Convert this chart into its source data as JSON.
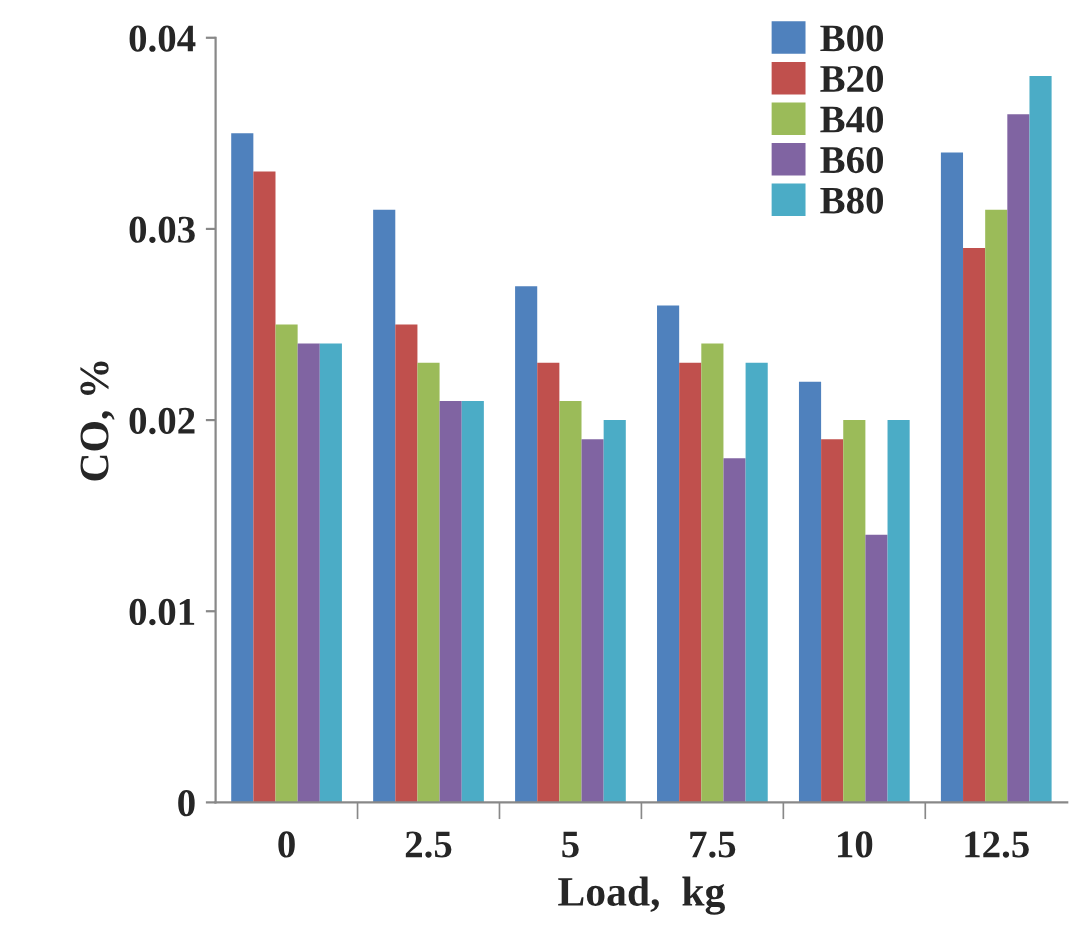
{
  "chart_data": {
    "type": "bar",
    "xlabel": "Load,  kg",
    "ylabel": "CO, %",
    "categories": [
      "0",
      "2.5",
      "5",
      "7.5",
      "10",
      "12.5"
    ],
    "series": [
      {
        "name": "B00",
        "color": "#4f81bd",
        "values": [
          0.035,
          0.031,
          0.027,
          0.026,
          0.022,
          0.034
        ]
      },
      {
        "name": "B20",
        "color": "#c0504d",
        "values": [
          0.033,
          0.025,
          0.023,
          0.023,
          0.019,
          0.029
        ]
      },
      {
        "name": "B40",
        "color": "#9bbb59",
        "values": [
          0.025,
          0.023,
          0.021,
          0.024,
          0.02,
          0.031
        ]
      },
      {
        "name": "B60",
        "color": "#8064a2",
        "values": [
          0.024,
          0.021,
          0.019,
          0.018,
          0.014,
          0.036
        ]
      },
      {
        "name": "B80",
        "color": "#4bacc6",
        "values": [
          0.024,
          0.021,
          0.02,
          0.023,
          0.02,
          0.038
        ]
      }
    ],
    "ylim": [
      0,
      0.04
    ],
    "yticks": [
      0,
      0.01,
      0.02,
      0.03,
      0.04
    ],
    "grid": false,
    "legend": "top right"
  }
}
